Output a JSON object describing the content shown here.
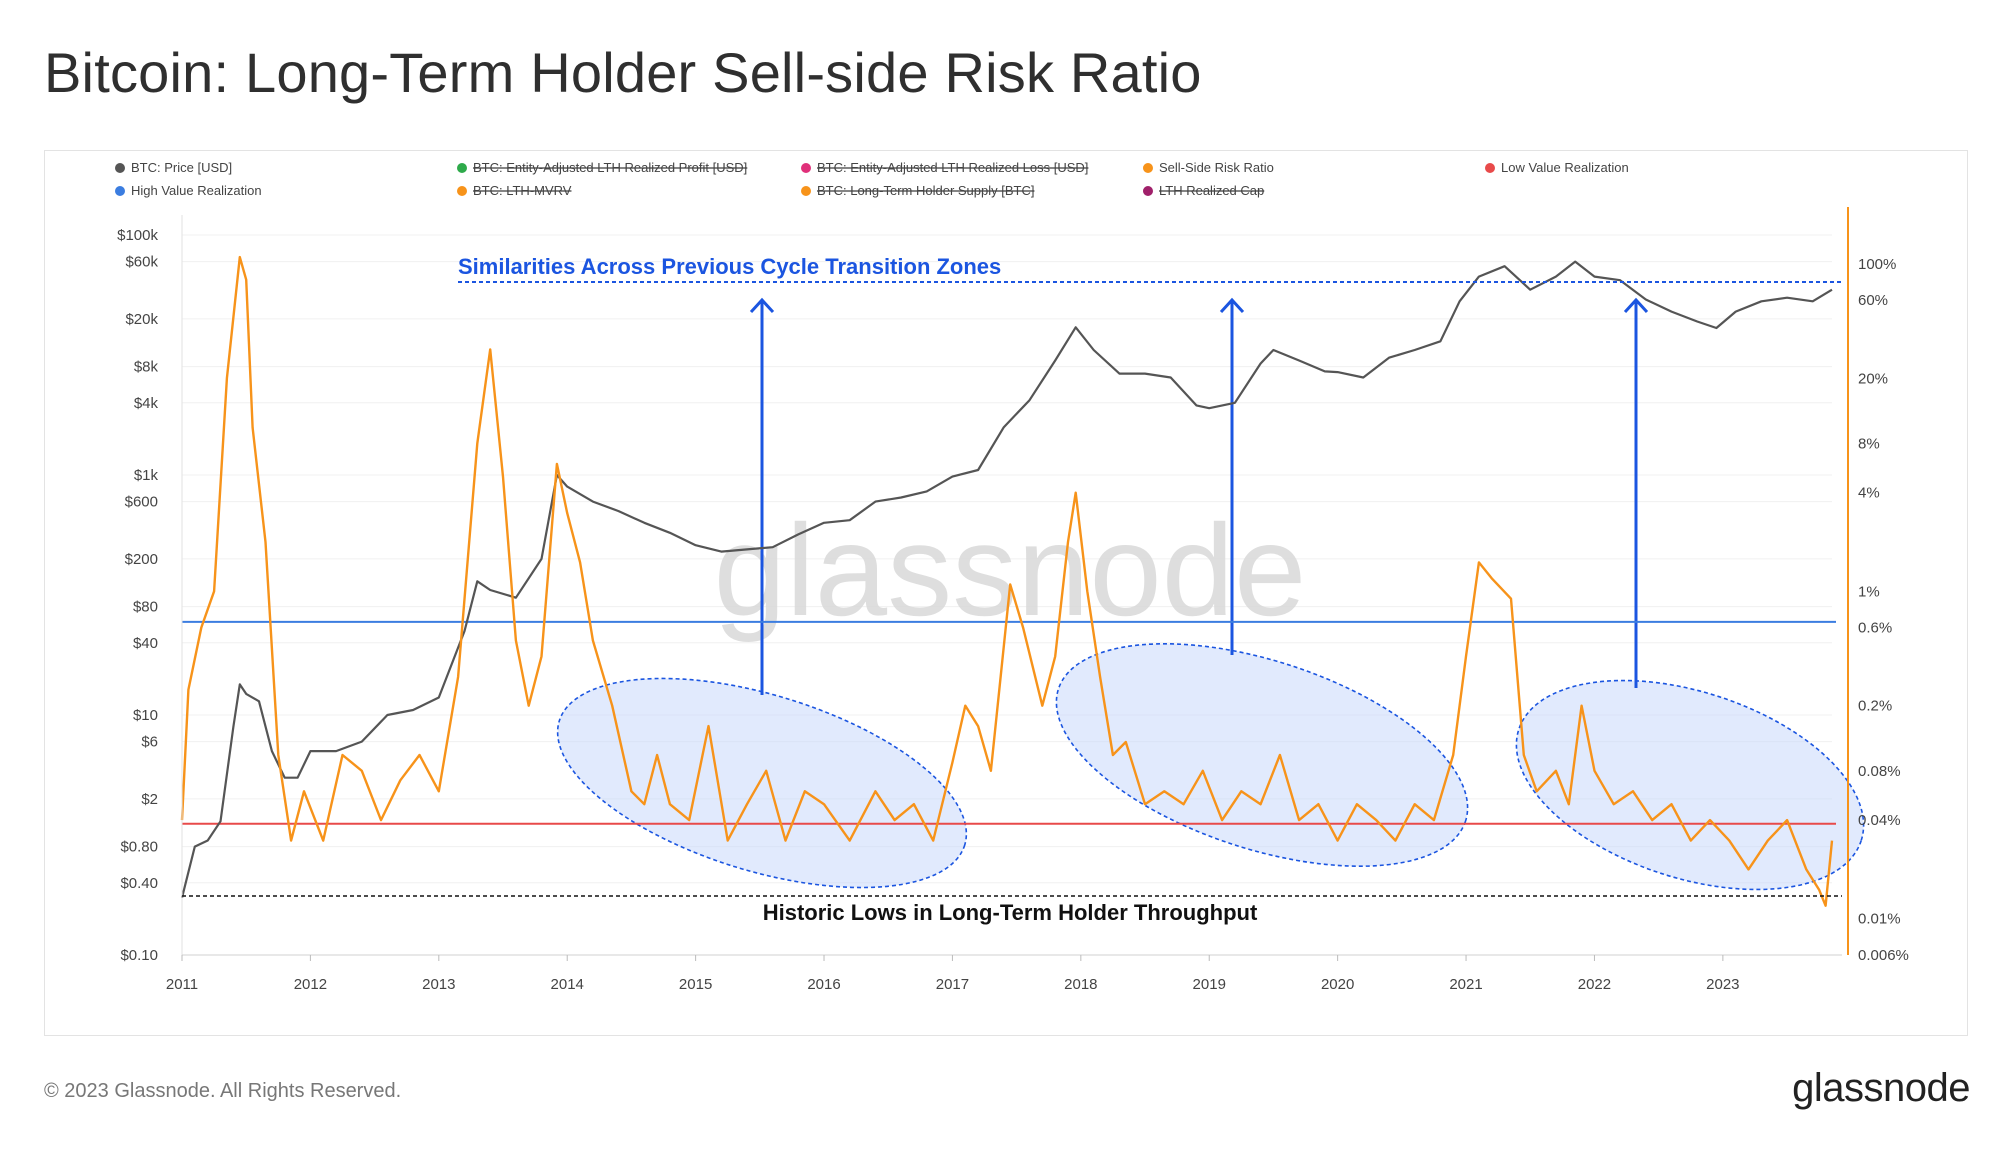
{
  "title": "Bitcoin: Long-Term Holder Sell-side Risk Ratio",
  "footer": {
    "copyright": "© 2023 Glassnode. All Rights Reserved.",
    "logo": "glassnode"
  },
  "watermark": "glassnode",
  "chart_data": {
    "type": "line",
    "legend": [
      {
        "label": "BTC: Price [USD]",
        "color": "#555555",
        "active": true
      },
      {
        "label": "BTC: Entity-Adjusted LTH Realized Profit [USD]",
        "color": "#2eaa4a",
        "active": false
      },
      {
        "label": "BTC: Entity-Adjusted LTH Realized Loss [USD]",
        "color": "#e0307a",
        "active": false
      },
      {
        "label": "Sell-Side Risk Ratio",
        "color": "#f7931a",
        "active": true
      },
      {
        "label": "Low Value Realization",
        "color": "#e84a4a",
        "active": true
      },
      {
        "label": "High Value Realization",
        "color": "#3b7de0",
        "active": true
      },
      {
        "label": "BTC: LTH-MVRV",
        "color": "#f7931a",
        "active": false
      },
      {
        "label": "BTC: Long-Term Holder Supply [BTC]",
        "color": "#f7931a",
        "active": false
      },
      {
        "label": "LTH Realized Cap",
        "color": "#a0206a",
        "active": false
      }
    ],
    "x_ticks": [
      "2011",
      "2012",
      "2013",
      "2014",
      "2015",
      "2016",
      "2017",
      "2018",
      "2019",
      "2020",
      "2021",
      "2022",
      "2023"
    ],
    "x_range": [
      2011.0,
      2023.85
    ],
    "y_left": {
      "scale": "log",
      "range": [
        0.1,
        100000
      ],
      "tick_values": [
        100000,
        60000,
        20000,
        8000,
        4000,
        1000,
        600,
        200,
        80,
        40,
        10,
        6,
        2,
        0.8,
        0.4,
        0.1
      ],
      "tick_labels": [
        "$100k",
        "$60k",
        "$20k",
        "$8k",
        "$4k",
        "$1k",
        "$600",
        "$200",
        "$80",
        "$40",
        "$10",
        "$6",
        "$2",
        "$0.80",
        "$0.40",
        "$0.10"
      ]
    },
    "y_right": {
      "scale": "log",
      "range": [
        0.006,
        150
      ],
      "tick_values": [
        100,
        60,
        20,
        8,
        4,
        1,
        0.6,
        0.2,
        0.08,
        0.04,
        0.01,
        0.006
      ],
      "tick_labels": [
        "100%",
        "60%",
        "20%",
        "8%",
        "4%",
        "1%",
        "0.6%",
        "0.2%",
        "0.08%",
        "0.04%",
        "0.01%",
        "0.006%"
      ]
    },
    "thresholds": [
      {
        "name": "High Value Realization",
        "value_percent": 0.65,
        "color": "#3b7de0"
      },
      {
        "name": "Low Value Realization",
        "value_percent": 0.038,
        "color": "#e84a4a"
      }
    ],
    "series": [
      {
        "name": "BTC: Price [USD]",
        "axis": "left",
        "color": "#555555",
        "x": [
          2011.0,
          2011.1,
          2011.2,
          2011.3,
          2011.4,
          2011.45,
          2011.5,
          2011.6,
          2011.7,
          2011.8,
          2011.9,
          2012.0,
          2012.2,
          2012.4,
          2012.6,
          2012.8,
          2013.0,
          2013.2,
          2013.3,
          2013.4,
          2013.6,
          2013.8,
          2013.92,
          2014.0,
          2014.2,
          2014.4,
          2014.6,
          2014.8,
          2015.0,
          2015.2,
          2015.4,
          2015.6,
          2015.8,
          2016.0,
          2016.2,
          2016.4,
          2016.6,
          2016.8,
          2017.0,
          2017.2,
          2017.4,
          2017.6,
          2017.8,
          2017.96,
          2018.1,
          2018.3,
          2018.5,
          2018.7,
          2018.9,
          2019.0,
          2019.2,
          2019.4,
          2019.5,
          2019.7,
          2019.9,
          2020.0,
          2020.2,
          2020.4,
          2020.6,
          2020.8,
          2020.95,
          2021.1,
          2021.3,
          2021.5,
          2021.7,
          2021.85,
          2022.0,
          2022.2,
          2022.4,
          2022.6,
          2022.8,
          2022.95,
          2023.1,
          2023.3,
          2023.5,
          2023.7,
          2023.85
        ],
        "values": [
          0.3,
          0.8,
          0.9,
          1.3,
          8,
          18,
          15,
          13,
          5,
          3,
          3,
          5,
          5,
          6,
          10,
          11,
          14,
          50,
          130,
          110,
          95,
          200,
          1000,
          800,
          600,
          500,
          400,
          330,
          260,
          230,
          240,
          250,
          320,
          400,
          420,
          600,
          650,
          730,
          970,
          1100,
          2500,
          4200,
          9000,
          17000,
          11000,
          7000,
          7000,
          6500,
          3800,
          3600,
          4000,
          8500,
          11000,
          9000,
          7300,
          7200,
          6500,
          9500,
          11000,
          13000,
          28000,
          45000,
          55000,
          35000,
          45000,
          60000,
          45000,
          42000,
          29000,
          23000,
          19000,
          16800,
          23000,
          28000,
          30000,
          28000,
          35000
        ]
      },
      {
        "name": "Sell-Side Risk Ratio",
        "axis": "right",
        "color": "#f7931a",
        "x": [
          2011.0,
          2011.05,
          2011.15,
          2011.25,
          2011.35,
          2011.45,
          2011.5,
          2011.55,
          2011.65,
          2011.75,
          2011.85,
          2011.95,
          2012.1,
          2012.25,
          2012.4,
          2012.55,
          2012.7,
          2012.85,
          2013.0,
          2013.15,
          2013.3,
          2013.4,
          2013.5,
          2013.6,
          2013.7,
          2013.8,
          2013.92,
          2014.0,
          2014.1,
          2014.2,
          2014.35,
          2014.5,
          2014.6,
          2014.7,
          2014.8,
          2014.95,
          2015.1,
          2015.25,
          2015.4,
          2015.55,
          2015.7,
          2015.85,
          2016.0,
          2016.2,
          2016.4,
          2016.55,
          2016.7,
          2016.85,
          2017.0,
          2017.1,
          2017.2,
          2017.3,
          2017.45,
          2017.55,
          2017.7,
          2017.8,
          2017.9,
          2017.96,
          2018.05,
          2018.15,
          2018.25,
          2018.35,
          2018.5,
          2018.65,
          2018.8,
          2018.95,
          2019.1,
          2019.25,
          2019.4,
          2019.55,
          2019.7,
          2019.85,
          2020.0,
          2020.15,
          2020.3,
          2020.45,
          2020.6,
          2020.75,
          2020.9,
          2021.0,
          2021.1,
          2021.2,
          2021.35,
          2021.45,
          2021.55,
          2021.7,
          2021.8,
          2021.9,
          2022.0,
          2022.15,
          2022.3,
          2022.45,
          2022.6,
          2022.75,
          2022.9,
          2023.05,
          2023.2,
          2023.35,
          2023.5,
          2023.65,
          2023.75,
          2023.8,
          2023.85
        ],
        "values": [
          0.04,
          0.25,
          0.6,
          1.0,
          20,
          110,
          80,
          10,
          2,
          0.1,
          0.03,
          0.06,
          0.03,
          0.1,
          0.08,
          0.04,
          0.07,
          0.1,
          0.06,
          0.3,
          8,
          30,
          5,
          0.5,
          0.2,
          0.4,
          6,
          3,
          1.5,
          0.5,
          0.2,
          0.06,
          0.05,
          0.1,
          0.05,
          0.04,
          0.15,
          0.03,
          0.05,
          0.08,
          0.03,
          0.06,
          0.05,
          0.03,
          0.06,
          0.04,
          0.05,
          0.03,
          0.09,
          0.2,
          0.15,
          0.08,
          1.1,
          0.6,
          0.2,
          0.4,
          2.0,
          4.0,
          1.0,
          0.3,
          0.1,
          0.12,
          0.05,
          0.06,
          0.05,
          0.08,
          0.04,
          0.06,
          0.05,
          0.1,
          0.04,
          0.05,
          0.03,
          0.05,
          0.04,
          0.03,
          0.05,
          0.04,
          0.1,
          0.4,
          1.5,
          1.2,
          0.9,
          0.1,
          0.06,
          0.08,
          0.05,
          0.2,
          0.08,
          0.05,
          0.06,
          0.04,
          0.05,
          0.03,
          0.04,
          0.03,
          0.02,
          0.03,
          0.04,
          0.02,
          0.015,
          0.012,
          0.03
        ]
      }
    ],
    "annotations": [
      {
        "text": "Similarities Across Previous Cycle Transition Zones",
        "color": "#1b55e0"
      },
      {
        "text": "Historic Lows in Long-Term Holder Throughput",
        "color": "#111111"
      }
    ],
    "transition_zones": [
      {
        "x_start": 2013.85,
        "x_end": 2017.15,
        "arrow_x": 2015.5
      },
      {
        "x_start": 2017.9,
        "x_end": 2020.95,
        "arrow_x": 2019.15
      },
      {
        "x_start": 2021.3,
        "x_end": 2023.95,
        "arrow_x": 2022.3
      }
    ]
  }
}
